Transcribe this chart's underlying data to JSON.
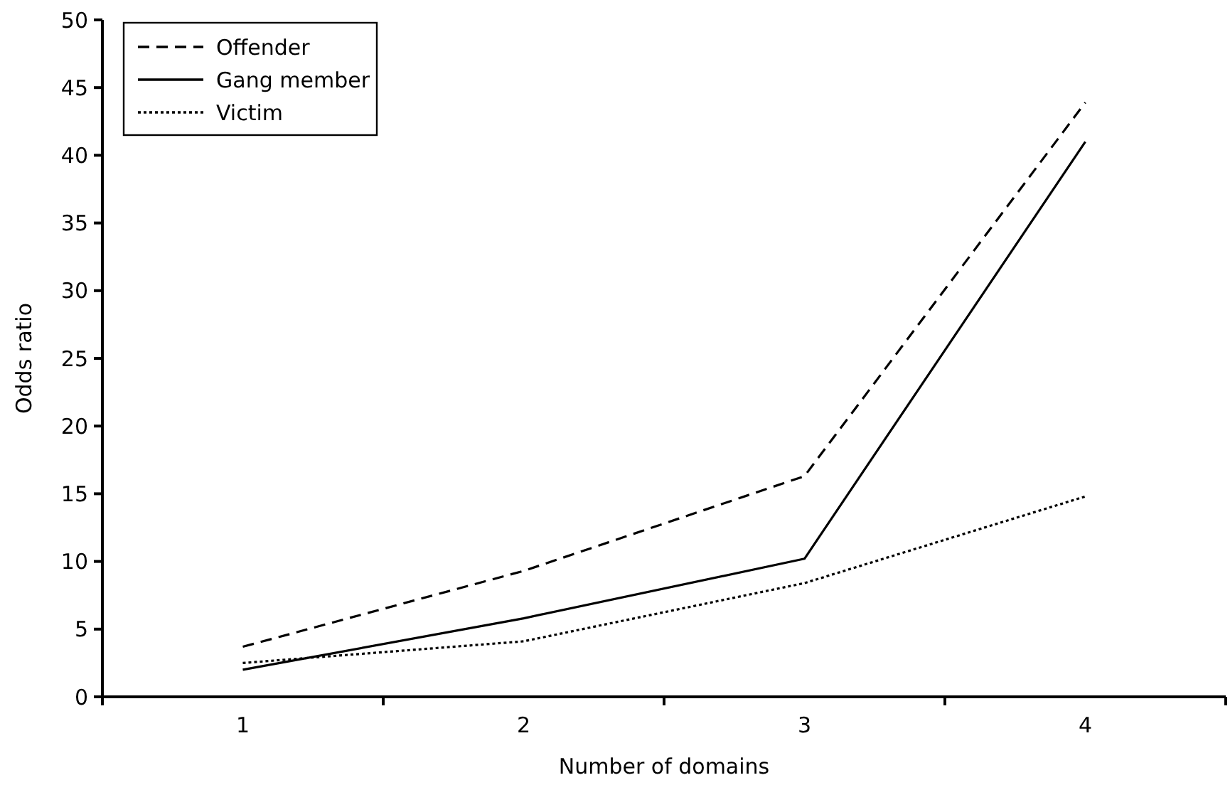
{
  "chart_data": {
    "type": "line",
    "xlabel": "Number of domains",
    "ylabel": "Odds ratio",
    "categories": [
      "1",
      "2",
      "3",
      "4"
    ],
    "ylim": [
      0,
      50
    ],
    "yticks": [
      0,
      5,
      10,
      15,
      20,
      25,
      30,
      35,
      40,
      45,
      50
    ],
    "legend": "top left",
    "series": [
      {
        "name": "Offender",
        "color": "#000000",
        "line_style": "dashed",
        "values": [
          3.7,
          9.3,
          16.3,
          43.9
        ]
      },
      {
        "name": "Gang member",
        "color": "#000000",
        "line_style": "solid",
        "values": [
          2.0,
          5.8,
          10.2,
          41.0
        ]
      },
      {
        "name": "Victim",
        "color": "#000000",
        "line_style": "dotted",
        "values": [
          2.5,
          4.1,
          8.4,
          14.8
        ]
      }
    ]
  }
}
